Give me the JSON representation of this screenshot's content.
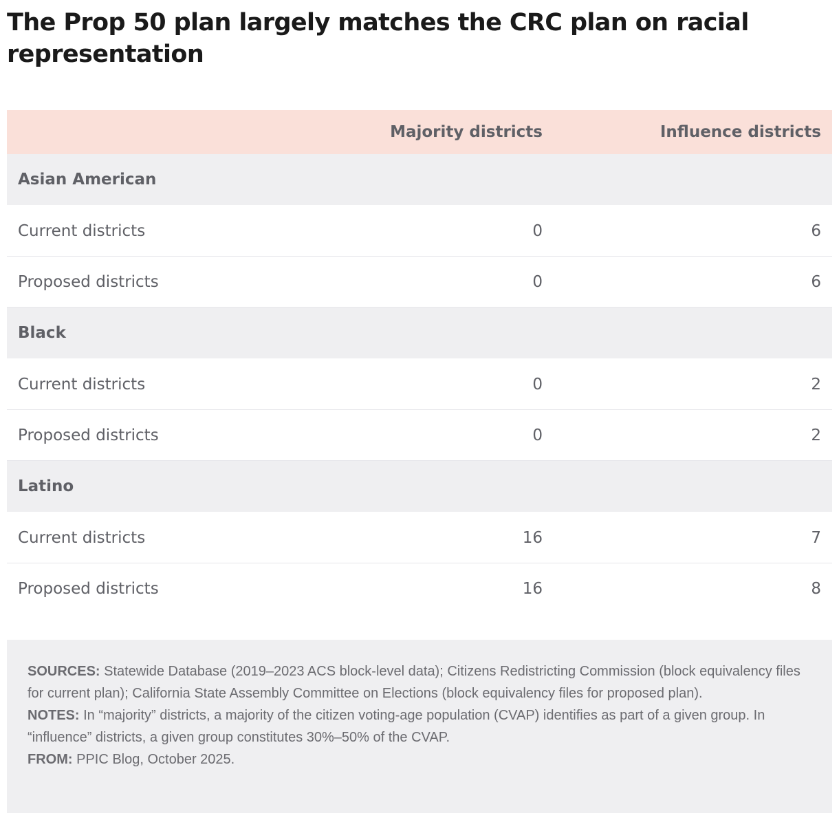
{
  "title": "The Prop 50 plan largely matches the CRC plan on racial representation",
  "colors": {
    "header_bg": "#fae0d9",
    "group_bg": "#efeff1",
    "text_gray": "#5f6066",
    "notes_bg": "#efeff1"
  },
  "chart_data": {
    "type": "table",
    "title": "The Prop 50 plan largely matches the CRC plan on racial representation",
    "columns": [
      "",
      "Majority districts",
      "Influence districts"
    ],
    "groups": [
      {
        "name": "Asian American",
        "rows": [
          {
            "label": "Current districts",
            "majority": "0",
            "influence": "6"
          },
          {
            "label": "Proposed districts",
            "majority": "0",
            "influence": "6"
          }
        ]
      },
      {
        "name": "Black",
        "rows": [
          {
            "label": "Current districts",
            "majority": "0",
            "influence": "2"
          },
          {
            "label": "Proposed districts",
            "majority": "0",
            "influence": "2"
          }
        ]
      },
      {
        "name": "Latino",
        "rows": [
          {
            "label": "Current districts",
            "majority": "16",
            "influence": "7"
          },
          {
            "label": "Proposed districts",
            "majority": "16",
            "influence": "8"
          }
        ]
      }
    ]
  },
  "notes": {
    "sources_label": "SOURCES:",
    "sources_text": " Statewide Database (2019–2023 ACS block-level data); Citizens Redistricting Commission (block equivalency files for current plan); California State Assembly Committee on Elections (block equivalency files for proposed plan).",
    "notes_label": "NOTES:",
    "notes_text": " In “majority” districts, a majority of the citizen voting-age population (CVAP) identifies as part of a given group. In “influence” districts, a given group constitutes 30%–50% of the CVAP.",
    "from_label": "FROM:",
    "from_text": " PPIC Blog, October 2025."
  }
}
